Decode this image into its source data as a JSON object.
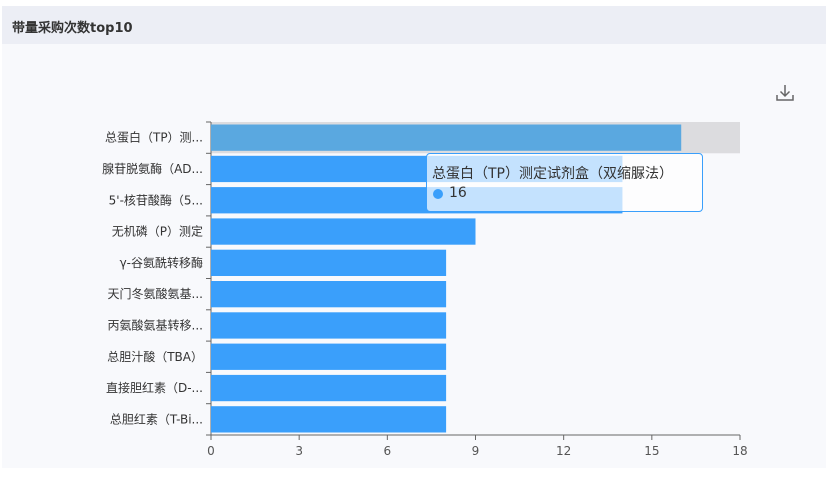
{
  "panel": {
    "title": "带量采购次数top10"
  },
  "icons": {
    "download": "download-icon"
  },
  "colors": {
    "bar": "#3a9ffb",
    "bar_highlight": "#5aa8e0",
    "hover_band": "#dcdcdf"
  },
  "tooltip": {
    "name": "总蛋白（TP）测定试剂盒（双缩脲法）",
    "value": "16"
  },
  "chart_data": {
    "type": "bar",
    "orientation": "horizontal",
    "categories": [
      "总蛋白（TP）测...",
      "腺苷脱氨酶（AD...",
      "5'-核苷酸酶（5...",
      "无机磷（P）测定",
      "γ-谷氨酰转移酶",
      "天门冬氨酸氨基...",
      "丙氨酸氨基转移...",
      "总胆汁酸（TBA）",
      "直接胆红素（D-...",
      "总胆红素（T-Bi..."
    ],
    "values": [
      16,
      14,
      14,
      9,
      8,
      8,
      8,
      8,
      8,
      8
    ],
    "xlim": [
      0,
      18
    ],
    "xticks": [
      "0",
      "3",
      "6",
      "9",
      "12",
      "15",
      "18"
    ],
    "grid": false,
    "highlighted_index": 0
  }
}
